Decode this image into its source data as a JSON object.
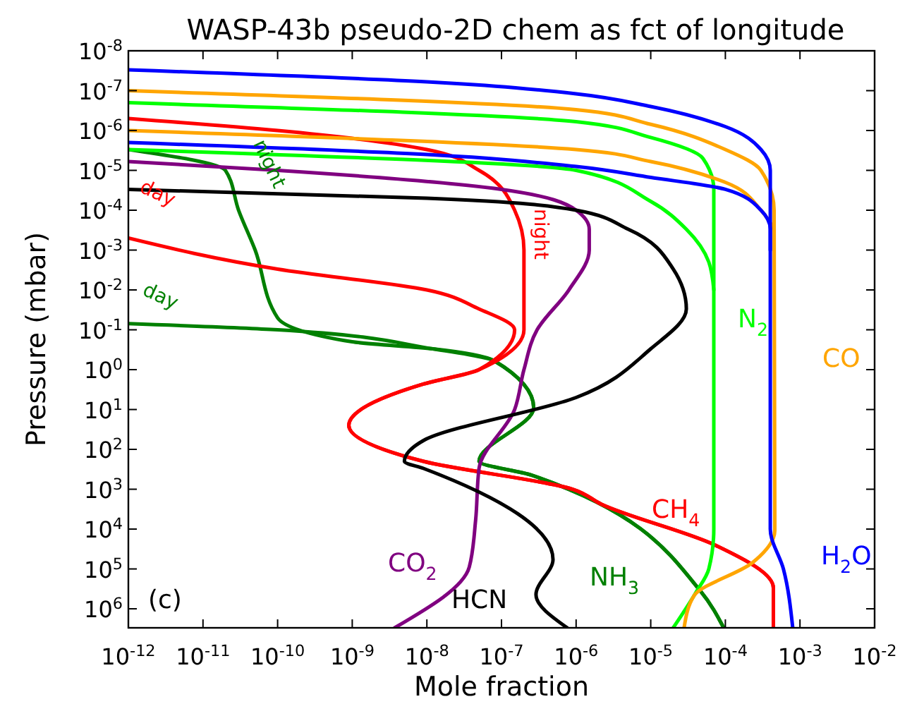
{
  "chart_data": {
    "type": "line",
    "title": "WASP-43b pseudo-2D chem as fct of longitude",
    "xlabel": "Mole fraction",
    "ylabel": "Pressure (mbar)",
    "log": "xy",
    "grid": false,
    "line_style": "solid",
    "xlim": [
      1e-12,
      0.01
    ],
    "ylim": [
      3000000.0,
      1e-08
    ],
    "xticks": [
      {
        "value": 1e-12,
        "label": "10$^{-12}$"
      },
      {
        "value": 1e-11,
        "label": "10$^{-11}$"
      },
      {
        "value": 1e-10,
        "label": "10$^{-10}$"
      },
      {
        "value": 1e-09,
        "label": "10$^{-9}$"
      },
      {
        "value": 1e-08,
        "label": "10$^{-8}$"
      },
      {
        "value": 1e-07,
        "label": "10$^{-7}$"
      },
      {
        "value": 1e-06,
        "label": "10$^{-6}$"
      },
      {
        "value": 1e-05,
        "label": "10$^{-5}$"
      },
      {
        "value": 0.0001,
        "label": "10$^{-4}$"
      },
      {
        "value": 0.001,
        "label": "10$^{-3}$"
      },
      {
        "value": 0.01,
        "label": "10$^{-2}$"
      }
    ],
    "yticks": [
      {
        "value": 1e-08,
        "label": "10$^{-8}$"
      },
      {
        "value": 1e-07,
        "label": "10$^{-7}$"
      },
      {
        "value": 1e-06,
        "label": "10$^{-6}$"
      },
      {
        "value": 1e-05,
        "label": "10$^{-5}$"
      },
      {
        "value": 0.0001,
        "label": "10$^{-4}$"
      },
      {
        "value": 0.001,
        "label": "10$^{-3}$"
      },
      {
        "value": 0.01,
        "label": "10$^{-2}$"
      },
      {
        "value": 0.1,
        "label": "10$^{-1}$"
      },
      {
        "value": 1,
        "label": "10$^{0}$"
      },
      {
        "value": 10,
        "label": "10$^{1}$"
      },
      {
        "value": 100,
        "label": "10$^{2}$"
      },
      {
        "value": 1000,
        "label": "10$^{3}$"
      },
      {
        "value": 10000.0,
        "label": "10$^{4}$"
      },
      {
        "value": 100000.0,
        "label": "10$^{5}$"
      },
      {
        "value": 1000000.0,
        "label": "10$^{6}$"
      }
    ],
    "series": [
      {
        "color": "#008000",
        "x": [
          9.5e-05,
          4.7e-05,
          2.5e-07,
          5e-08,
          2.7e-07,
          8e-08,
          1.2e-08,
          1e-10,
          1e-12
        ],
        "values": [
          3000000.0,
          370000.0,
          440,
          200,
          9,
          0.6,
          0.3,
          0.1,
          0.07
        ]
      },
      {
        "color": "#008000",
        "x": [
          9.5e-05,
          4.7e-05,
          2.5e-07,
          5e-08,
          2.7e-07,
          8e-08,
          1.2e-08,
          1e-09,
          1e-10,
          5e-11,
          3e-11,
          2e-11,
          1e-12
        ],
        "values": [
          3000000.0,
          370000.0,
          440,
          200,
          9,
          0.6,
          0.3,
          0.2,
          0.05,
          0.001,
          0.0001,
          1e-05,
          3e-06
        ]
      },
      {
        "color": "#ff0000",
        "x": [
          0.00044,
          0.00044,
          7.2e-05,
          2.2e-06,
          9e-07,
          9e-09,
          9e-10,
          9e-09,
          5e-08,
          1.5e-07,
          5e-08,
          1e-08,
          1e-10,
          1e-12
        ],
        "values": [
          3000000.0,
          300000.0,
          25000.0,
          2400.0,
          1000.0,
          200,
          25,
          2.3,
          1,
          0.1,
          0.03,
          0.01,
          0.003,
          0.0005
        ]
      },
      {
        "color": "#ff0000",
        "x": [
          0.00044,
          0.00044,
          7.2e-05,
          2.2e-06,
          9e-07,
          9e-09,
          9e-10,
          9e-09,
          5e-08,
          2e-07,
          2e-07,
          2e-07,
          1.5e-07,
          5e-08,
          1e-08,
          1e-10,
          1e-12
        ],
        "values": [
          3000000.0,
          300000.0,
          25000.0,
          2400.0,
          1000.0,
          200,
          25,
          2.3,
          1,
          0.1,
          0.01,
          0.001,
          0.0001,
          1e-05,
          3e-06,
          1e-06,
          5e-07
        ]
      },
      {
        "color": "#800080",
        "x": [
          3.7e-09,
          3.7e-08,
          4.5e-08,
          5e-08,
          1.5e-07,
          2e-07,
          3e-07,
          8e-07,
          1.5e-06,
          1.5e-06,
          1e-06,
          1e-07,
          1e-10,
          1e-12
        ],
        "values": [
          3000000.0,
          90000.0,
          6000.0,
          300,
          10,
          1,
          0.1,
          0.01,
          0.001,
          0.0003,
          0.0001,
          3e-05,
          1e-05,
          6e-06
        ]
      },
      {
        "color": "#000000",
        "x": [
          7.6e-07,
          2.9e-07,
          4.9e-07,
          9e-09,
          5e-09,
          9e-09,
          1e-06,
          1e-05,
          3e-05,
          2e-05,
          5e-06,
          1e-06,
          1e-08,
          1e-12
        ],
        "values": [
          3000000.0,
          440000.0,
          58000.0,
          300,
          200,
          60,
          5,
          0.3,
          0.03,
          0.003,
          0.0003,
          0.0001,
          5e-05,
          3e-05
        ]
      },
      {
        "color": "#00ff00",
        "x": [
          2e-05,
          4e-05,
          6e-05,
          7e-05,
          7e-05,
          5e-05,
          1e-05,
          1e-06,
          1e-12
        ],
        "values": [
          3000000.0,
          400000.0,
          100000.0,
          10000.0,
          3e-05,
          5e-06,
          1.5e-06,
          6e-07,
          2e-07
        ]
      },
      {
        "color": "#00ff00",
        "x": [
          7e-05,
          6e-05,
          3e-05,
          1e-05,
          1e-06,
          1e-12
        ],
        "values": [
          0.01,
          0.002,
          0.0003,
          6e-05,
          1e-05,
          3e-06
        ]
      },
      {
        "color": "#ffa500",
        "x": [
          2.8e-05,
          3.8e-05,
          0.00023,
          0.00046,
          0.00045,
          0.0003,
          0.0001,
          1e-05,
          1e-06,
          1e-12
        ],
        "values": [
          3000000.0,
          470000.0,
          70000.0,
          11000.0,
          0.0001,
          1e-05,
          3e-06,
          7e-07,
          3e-07,
          1e-07
        ]
      },
      {
        "color": "#ffa500",
        "x": [
          0.00045,
          0.0003,
          0.0001,
          1e-05,
          1e-06,
          1e-12
        ],
        "values": [
          0.0003,
          0.0001,
          2e-05,
          6e-06,
          3e-06,
          1e-06
        ]
      },
      {
        "color": "#0000ff",
        "x": [
          0.0008,
          0.0006,
          0.0004,
          0.0004,
          0.0004,
          0.0003,
          0.0001,
          1e-05,
          1e-06,
          1e-08,
          1e-12
        ],
        "values": [
          3000000.0,
          100000.0,
          10000.0,
          0.001,
          1e-05,
          3e-06,
          8e-07,
          2.5e-07,
          1.2e-07,
          6e-08,
          3e-08
        ]
      },
      {
        "color": "#0000ff",
        "x": [
          0.0004,
          0.0004,
          0.0003,
          0.0001,
          1e-05,
          1e-06,
          1e-08,
          1e-12
        ],
        "values": [
          0.001,
          0.0003,
          0.0001,
          3e-05,
          1.5e-05,
          8e-06,
          4e-06,
          2e-06
        ]
      }
    ],
    "annotations": [
      "N$_{2}$",
      "CO",
      "CH$_{4}$",
      "H$_{2}$O",
      "NH$_{3}$",
      "HCN",
      "CO$_{2}$",
      "(c)",
      "day",
      "night",
      "day",
      "night"
    ]
  }
}
